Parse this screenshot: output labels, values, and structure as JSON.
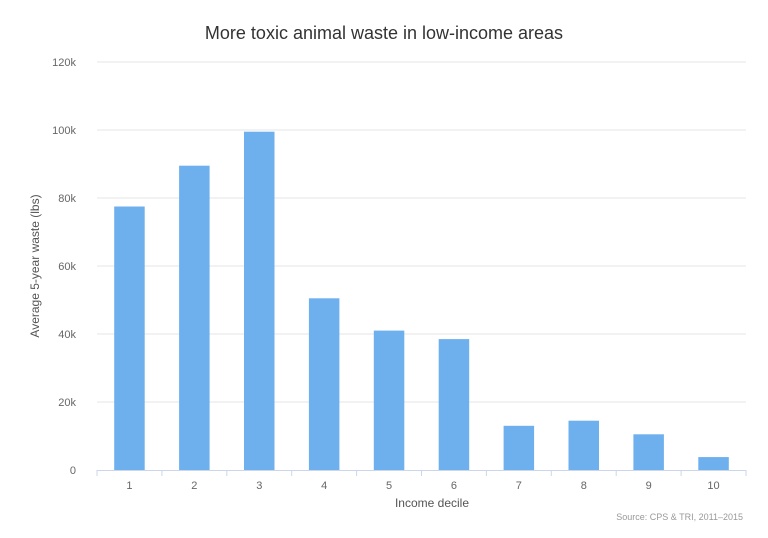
{
  "chart_data": {
    "type": "bar",
    "title": "More toxic animal waste in low-income areas",
    "xlabel": "Income decile",
    "ylabel": "Average 5-year waste (lbs)",
    "categories": [
      "1",
      "2",
      "3",
      "4",
      "5",
      "6",
      "7",
      "8",
      "9",
      "10"
    ],
    "values": [
      77500,
      89500,
      99500,
      50500,
      41000,
      38500,
      13000,
      14500,
      10500,
      3800
    ],
    "ylim": [
      0,
      120000
    ],
    "yticks": [
      0,
      20000,
      40000,
      60000,
      80000,
      100000,
      120000
    ],
    "ytick_labels": [
      "0",
      "20k",
      "40k",
      "60k",
      "80k",
      "100k",
      "120k"
    ],
    "grid": true,
    "legend": "none",
    "source": "Source: CPS & TRI, 2011–2015",
    "colors": {
      "bar": "#6eb0ed",
      "grid": "#e6e6e6",
      "axis": "#ccd6eb"
    }
  }
}
